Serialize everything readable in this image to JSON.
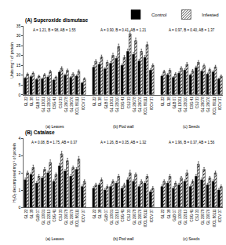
{
  "chart_data": [
    {
      "type": "bar",
      "title": "(A) Superoxide dismutase",
      "y_label": "Units mg⁻¹ of protein",
      "legend": "top right",
      "categories": [
        "GL 22",
        "GL 38",
        "GLB 07",
        "GL 13001",
        "GL 22010",
        "CSG 41",
        "CSJ 33",
        "GL 29078",
        "GL 29076",
        "ICCL 86111",
        "ICCV 37",
        null,
        "GL 22",
        "GL 38",
        "GLB 07",
        "GL 13001",
        "GL 22010",
        "CSG 41",
        "CSJ 33",
        "GL 29078",
        "GL 29076",
        "ICCL 86111",
        "ICCV 37",
        null,
        "GL 22",
        "GL 38",
        "GLB 07",
        "GL 13001",
        "GL 22010",
        "CSG 41",
        "CSJ 33",
        "GL 29078",
        "GL 29076",
        "ICCL 86111",
        "ICCV 37"
      ],
      "groups": [
        {
          "label": "(a) Leaves",
          "stats": "A = 1.21, B = 98, AB = 1.55"
        },
        {
          "label": "(b) Pod wall",
          "stats": "A = 0.90, B = 0.41, AB = 1.21"
        },
        {
          "label": "(c) Seeds",
          "stats": "A = 0.97, B = 0.40, AB = 1.37"
        }
      ],
      "series": [
        {
          "name": "Control",
          "color": "#000000",
          "marker": "solid",
          "values": [
            8.5,
            9.2,
            7.8,
            8.1,
            9.0,
            7.5,
            11.5,
            10.0,
            8.8,
            9.5,
            6.0,
            null,
            14.0,
            15.5,
            13.2,
            16.0,
            18.5,
            15.0,
            22.0,
            20.5,
            17.2,
            19.0,
            12.5,
            null,
            9.5,
            10.2,
            8.8,
            11.0,
            12.5,
            10.0,
            13.8,
            12.0,
            10.5,
            11.6,
            8.0
          ],
          "errors": [
            0.5,
            0.6,
            0.5,
            0.5,
            0.6,
            0.5,
            0.7,
            0.6,
            0.5,
            0.6,
            0.4,
            null,
            0.8,
            0.9,
            0.7,
            0.9,
            1.0,
            0.8,
            1.2,
            1.1,
            0.9,
            1.0,
            0.7,
            null,
            0.6,
            0.6,
            0.5,
            0.7,
            0.7,
            0.6,
            0.8,
            0.7,
            0.6,
            0.7,
            0.5
          ]
        },
        {
          "name": "Infested",
          "color": "#ffffff",
          "marker": "hatched",
          "values": [
            10.5,
            11.0,
            9.5,
            10.2,
            11.8,
            9.0,
            13.5,
            12.4,
            10.6,
            12.0,
            8.2,
            null,
            17.0,
            19.2,
            16.5,
            20.0,
            24.5,
            19.0,
            31.0,
            27.5,
            22.0,
            25.5,
            15.0,
            null,
            11.8,
            12.5,
            10.6,
            13.5,
            15.5,
            12.2,
            16.5,
            14.8,
            12.8,
            14.2,
            9.5
          ],
          "errors": [
            0.6,
            0.6,
            0.5,
            0.6,
            0.7,
            0.5,
            0.8,
            0.7,
            0.6,
            0.7,
            0.5,
            null,
            0.9,
            1.0,
            0.9,
            1.1,
            1.3,
            1.0,
            1.5,
            1.4,
            1.2,
            1.3,
            0.8,
            null,
            0.7,
            0.7,
            0.6,
            0.8,
            0.9,
            0.7,
            0.9,
            0.8,
            0.7,
            0.8,
            0.6
          ]
        }
      ],
      "ylim": [
        0,
        35
      ],
      "yticks": [
        0,
        5,
        10,
        15,
        20,
        25,
        30,
        35
      ]
    },
    {
      "type": "bar",
      "title": "(B) Catalase",
      "y_label": "H₂O₂ decomposed mg⁻¹ of protein",
      "categories": [
        "GL 22",
        "GL 38",
        "GLB 07",
        "GL 13001",
        "GL 22010",
        "CSG 41",
        "CSJ 33",
        "GL 29078",
        "GL 29076",
        "ICCL 86111",
        "ICCV 37",
        null,
        "GL 22",
        "GL 38",
        "GLB 07",
        "GL 13001",
        "GL 22010",
        "CSG 41",
        "CSJ 33",
        "GL 29078",
        "GL 29076",
        "ICCL 86111",
        "ICCV 37",
        null,
        "GL 22",
        "GL 38",
        "GLB 07",
        "GL 13001",
        "GL 22010",
        "CSG 41",
        "CSJ 33",
        "GL 29078",
        "GL 29076",
        "ICCL 86111",
        "ICCV 37"
      ],
      "groups": [
        {
          "label": "(a) Leaves",
          "stats": "A = 0.08, B = 1.75, AB = 0.37"
        },
        {
          "label": "(b) Pod wall",
          "stats": "A = 1.26, B = 0.35, AB = 1.32"
        },
        {
          "label": "(c) Seeds",
          "stats": "A = 1.96, B = 0.37, AB = 1.56"
        }
      ],
      "series": [
        {
          "name": "Control",
          "color": "#000000",
          "marker": "solid",
          "values": [
            1.6,
            1.9,
            1.4,
            1.7,
            2.0,
            1.5,
            2.4,
            2.1,
            1.8,
            2.2,
            1.2,
            null,
            1.1,
            1.3,
            1.0,
            1.2,
            1.4,
            1.1,
            1.6,
            1.5,
            1.2,
            1.4,
            0.9,
            null,
            1.2,
            1.4,
            1.1,
            1.3,
            1.5,
            1.2,
            1.8,
            1.6,
            1.3,
            1.5,
            1.0
          ],
          "errors": [
            0.1,
            0.1,
            0.1,
            0.1,
            0.1,
            0.1,
            0.15,
            0.1,
            0.1,
            0.1,
            0.1,
            null,
            0.1,
            0.1,
            0.1,
            0.1,
            0.1,
            0.1,
            0.1,
            0.1,
            0.1,
            0.1,
            0.1,
            null,
            0.1,
            0.1,
            0.1,
            0.1,
            0.1,
            0.1,
            0.1,
            0.1,
            0.1,
            0.1,
            0.1
          ]
        },
        {
          "name": "Infested",
          "color": "#ffffff",
          "marker": "hatched",
          "values": [
            2.0,
            2.3,
            1.8,
            2.2,
            2.6,
            1.9,
            3.1,
            2.7,
            2.3,
            2.8,
            1.5,
            null,
            1.3,
            1.6,
            1.2,
            1.5,
            1.8,
            1.3,
            2.0,
            1.9,
            1.5,
            1.8,
            1.1,
            null,
            1.5,
            1.8,
            1.4,
            1.7,
            2.0,
            1.5,
            2.5,
            2.2,
            1.7,
            2.0,
            1.2
          ],
          "errors": [
            0.1,
            0.15,
            0.1,
            0.1,
            0.15,
            0.1,
            0.15,
            0.15,
            0.1,
            0.15,
            0.1,
            null,
            0.1,
            0.1,
            0.1,
            0.1,
            0.1,
            0.1,
            0.15,
            0.1,
            0.1,
            0.1,
            0.1,
            null,
            0.1,
            0.1,
            0.1,
            0.1,
            0.15,
            0.1,
            0.15,
            0.1,
            0.1,
            0.1,
            0.1
          ]
        }
      ],
      "ylim": [
        0,
        4
      ],
      "yticks": [
        0,
        1,
        2,
        3,
        4
      ]
    }
  ]
}
